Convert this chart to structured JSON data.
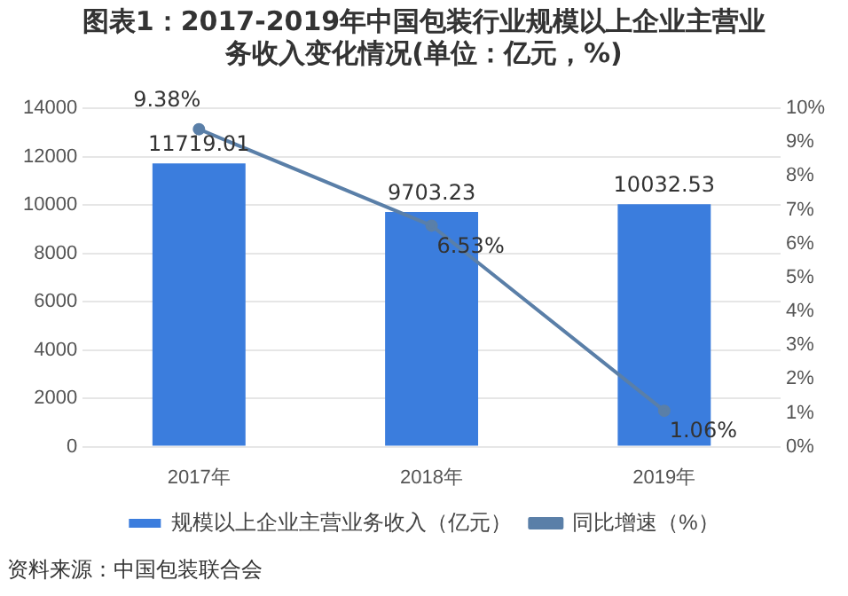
{
  "chart_data": {
    "type": "bar",
    "title": "图表1：2017-2019年中国包装行业规模以上企业主营业务收入变化情况(单位：亿元，%)",
    "categories": [
      "2017年",
      "2018年",
      "2019年"
    ],
    "series": [
      {
        "name": "规模以上企业主营业务收入（亿元）",
        "color": "#3b7ddd",
        "values": [
          11719.01,
          9703.23,
          10032.53
        ],
        "value_labels": [
          "11719.01",
          "9703.23",
          "10032.53"
        ]
      },
      {
        "name": "同比增速（%）",
        "type": "line",
        "axis": "y2",
        "color": "#5a7fa8",
        "values": [
          9.38,
          6.53,
          1.06
        ],
        "value_labels": [
          "9.38%",
          "6.53%",
          "1.06%"
        ]
      }
    ],
    "ylim": [
      0,
      14000
    ],
    "yticks": [
      0,
      2000,
      4000,
      6000,
      8000,
      10000,
      12000,
      14000
    ],
    "y2lim": [
      0,
      10
    ],
    "y2ticks": [
      {
        "value": 0,
        "label": "0%"
      },
      {
        "value": 1,
        "label": "1%"
      },
      {
        "value": 2,
        "label": "2%"
      },
      {
        "value": 3,
        "label": "3%"
      },
      {
        "value": 4,
        "label": "4%"
      },
      {
        "value": 5,
        "label": "5%"
      },
      {
        "value": 6,
        "label": "6%"
      },
      {
        "value": 7,
        "label": "7%"
      },
      {
        "value": 8,
        "label": "8%"
      },
      {
        "value": 9,
        "label": "9%"
      },
      {
        "value": 10,
        "label": "10%"
      }
    ],
    "grid": "y",
    "legend": "bottom",
    "marker": "circle",
    "line_style": "solid",
    "annotations": [
      "资料来源：中国包装联合会"
    ]
  }
}
